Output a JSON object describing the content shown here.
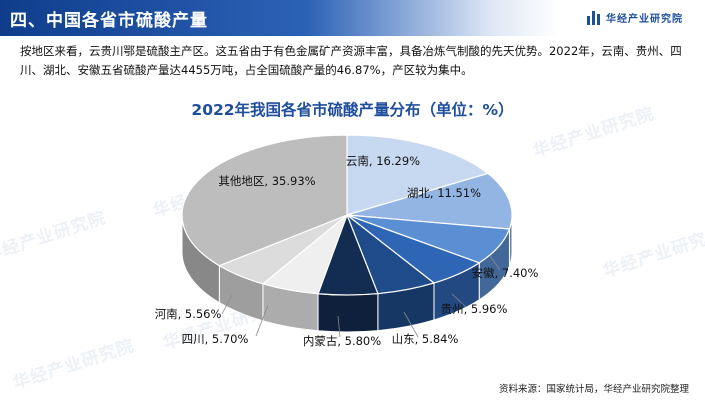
{
  "header": {
    "title": "四、中国各省市硫酸产量",
    "brand": "华经产业研究院",
    "colors": {
      "bar_start": "#0f3d8c",
      "bar_end": "#2c62b6",
      "brand": "#1f4e9c"
    }
  },
  "paragraph": "按地区来看，云贵川鄂是硫酸主产区。这五省由于有色金属矿产资源丰富，具备冶炼气制酸的先天优势。2022年，云南、贵州、四川、湖北、安徽五省硫酸产量达4455万吨，占全国硫酸产量的46.87%，产区较为集中。",
  "watermark": "华经产业研究院",
  "source": "资料来源：国家统计局，华经产业研究院整理",
  "chart_data": {
    "type": "pie",
    "style": "3d",
    "title": "2022年我国各省市硫酸产量分布（单位：%）",
    "slices": [
      {
        "label": "云南",
        "value": 16.29,
        "display": "云南, 16.29%",
        "color": "#c7d8f1"
      },
      {
        "label": "湖北",
        "value": 11.51,
        "display": "湖北, 11.51%",
        "color": "#93b5e3"
      },
      {
        "label": "安徽",
        "value": 7.4,
        "display": "安徽, 7.40%",
        "color": "#5b8fd4"
      },
      {
        "label": "贵州",
        "value": 5.96,
        "display": "贵州, 5.96%",
        "color": "#2f65b5"
      },
      {
        "label": "山东",
        "value": 5.84,
        "display": "山东, 5.84%",
        "color": "#1f4b8a"
      },
      {
        "label": "内蒙古",
        "value": 5.8,
        "display": "内蒙古, 5.80%",
        "color": "#132d52"
      },
      {
        "label": "四川",
        "value": 5.7,
        "display": "四川, 5.70%",
        "color": "#efefef"
      },
      {
        "label": "河南",
        "value": 5.56,
        "display": "河南, 5.56%",
        "color": "#dcdcdc"
      },
      {
        "label": "其他地区",
        "value": 35.93,
        "display": "其他地区, 35.93%",
        "color": "#bdbdbd"
      }
    ]
  }
}
